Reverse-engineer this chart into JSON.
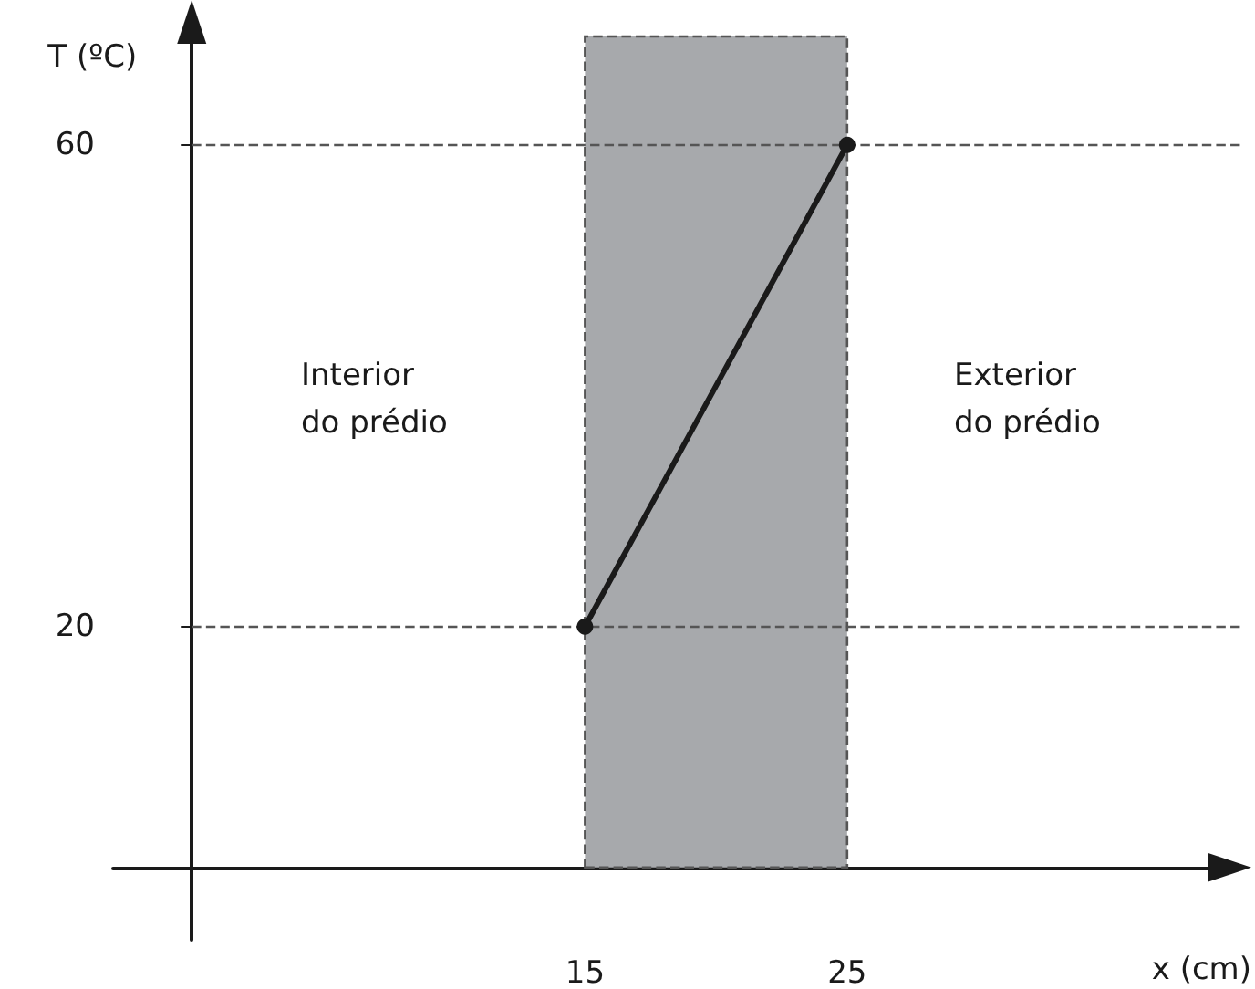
{
  "chart_data": {
    "type": "line",
    "xlabel": "x (cm)",
    "ylabel": "T (ºC)",
    "x": [
      15,
      25
    ],
    "series": [
      {
        "color": "#1a1a1a",
        "values": [
          20,
          60
        ]
      }
    ],
    "xlim": [
      -3,
      40
    ],
    "ylim": [
      -6,
      69
    ],
    "xticks": [
      15,
      25
    ],
    "yticks": [
      20,
      60
    ],
    "grid": false,
    "marker": "circle",
    "line_style": "solid",
    "ref_lines": [
      {
        "axis": "y",
        "value": 20,
        "color": "#555555",
        "line_style": "dashed"
      },
      {
        "axis": "y",
        "value": 60,
        "color": "#555555",
        "line_style": "dashed"
      }
    ],
    "bands": [
      {
        "axis": "x",
        "from": 15,
        "to": 25,
        "color": "#a7a9ac"
      }
    ],
    "annotations": [
      "Interior do prédio",
      "Exterior do prédio"
    ]
  }
}
